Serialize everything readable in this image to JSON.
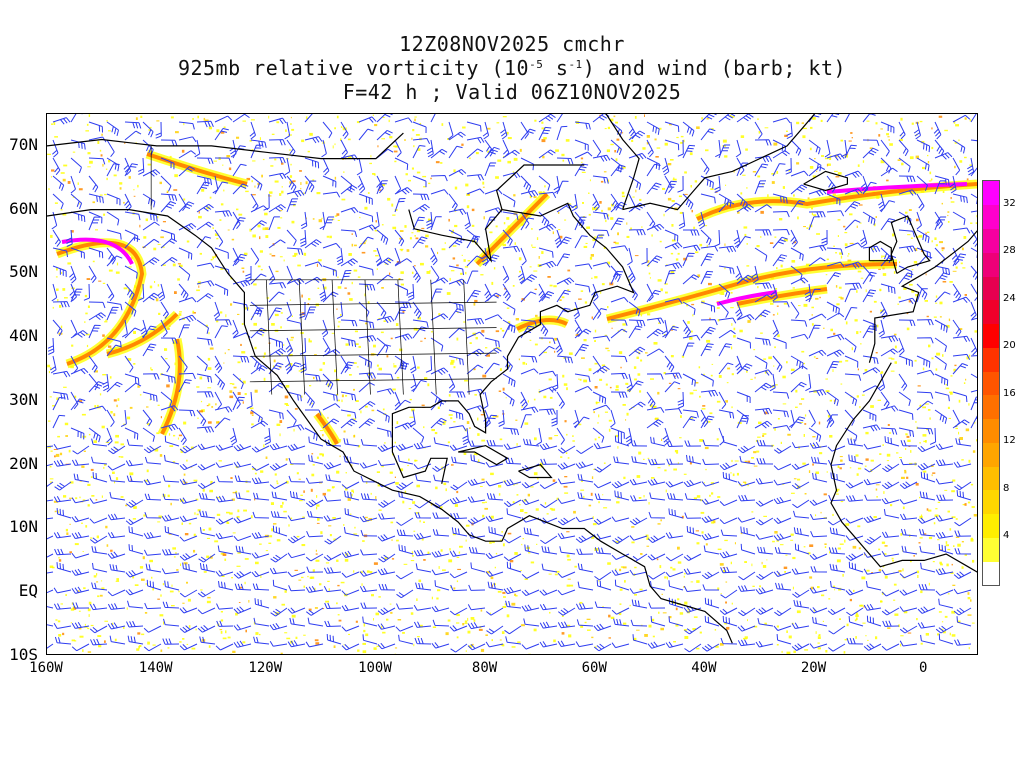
{
  "title": {
    "line1": "12Z08NOV2025 cmchr",
    "line2_prefix": "925mb relative vorticity (10",
    "line2_exp1": "-5",
    "line2_mid": " s",
    "line2_exp2": "-1",
    "line2_suffix": ") and wind (barb; kt)",
    "line3": "F=42 h ; Valid 06Z10NOV2025"
  },
  "axes": {
    "lat_labels": [
      "70N",
      "60N",
      "50N",
      "40N",
      "30N",
      "20N",
      "10N",
      "EQ",
      "10S"
    ],
    "lat_values": [
      70,
      60,
      50,
      40,
      30,
      20,
      10,
      0,
      -10
    ],
    "lon_labels": [
      "160W",
      "140W",
      "120W",
      "100W",
      "80W",
      "60W",
      "40W",
      "20W",
      "0"
    ],
    "lon_values": [
      -160,
      -140,
      -120,
      -100,
      -80,
      -60,
      -40,
      -20,
      0
    ],
    "lon_range": [
      -160,
      10
    ],
    "lat_range": [
      -10,
      75
    ]
  },
  "colorbar": {
    "labels": [
      "4",
      "8",
      "12",
      "16",
      "20",
      "24",
      "28",
      "32"
    ],
    "levels": [
      2,
      4,
      6,
      8,
      10,
      12,
      14,
      16,
      18,
      20,
      22,
      24,
      26,
      28,
      30,
      32,
      34
    ],
    "colors": [
      "#ffffff",
      "#ffff33",
      "#ffee00",
      "#ffd700",
      "#ffbe00",
      "#ffa500",
      "#ff8c00",
      "#ff7000",
      "#ff5500",
      "#ff3300",
      "#ff0000",
      "#f0002a",
      "#e60050",
      "#ee0078",
      "#f500a0",
      "#ff00cc",
      "#ff00ff"
    ]
  },
  "colors": {
    "barb": "#2e3df0",
    "coast": "#000000",
    "vort_low": "#ffff00",
    "vort_mid": "#ff8800",
    "vort_high": "#ff00ff"
  }
}
